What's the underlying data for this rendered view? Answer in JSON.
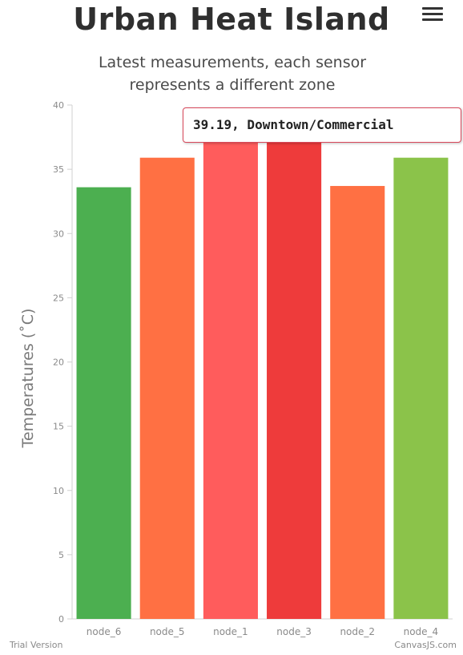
{
  "header": {
    "title": "Urban Heat Island",
    "subtitle_line1": "Latest measurements, each sensor",
    "subtitle_line2": "represents a different zone",
    "menu_icon": "hamburger-menu-icon"
  },
  "tooltip": {
    "text": "39.19, Downtown/Commercial"
  },
  "footer": {
    "left": "Trial Version",
    "right": "CanvasJS.com"
  },
  "chart_data": {
    "type": "bar",
    "title": "Urban Heat Island",
    "subtitle": "Latest measurements, each sensor represents a different zone",
    "xlabel": "",
    "ylabel": "Temperatures (˚C)",
    "ylim": [
      0,
      40
    ],
    "yticks": [
      0,
      5,
      10,
      15,
      20,
      25,
      30,
      35,
      40
    ],
    "grid": false,
    "categories": [
      "node_6",
      "node_5",
      "node_1",
      "node_3",
      "node_2",
      "node_4"
    ],
    "values": [
      33.6,
      35.9,
      37.2,
      39.19,
      33.7,
      35.9
    ],
    "colors": [
      "#4caf50",
      "#ff7043",
      "#ff5c5c",
      "#ee3b3b",
      "#ff7043",
      "#8bc34a"
    ],
    "tooltip_category": "Downtown/Commercial",
    "tooltip_value": 39.19
  }
}
